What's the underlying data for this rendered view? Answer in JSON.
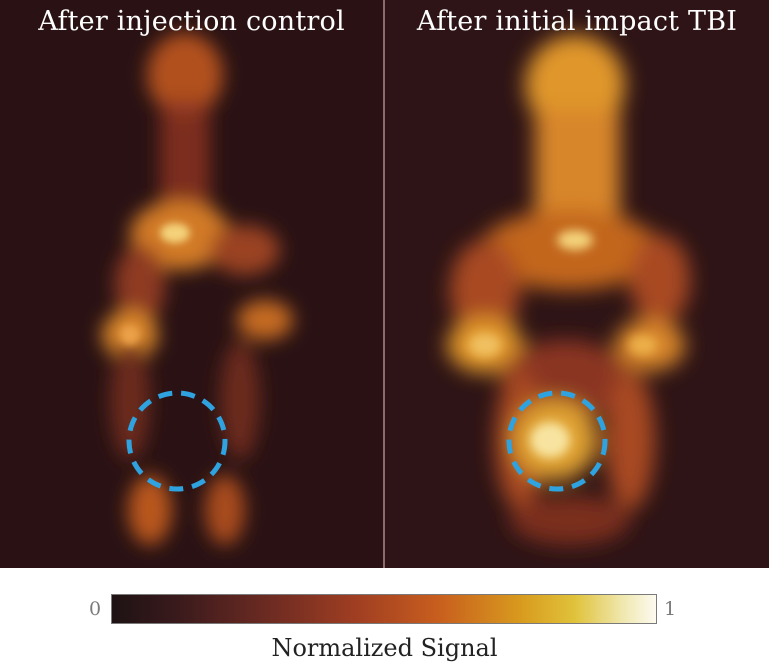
{
  "panels": [
    {
      "title": "After injection control"
    },
    {
      "title": "After initial impact TBI"
    }
  ],
  "colorbar": {
    "min_label": "0",
    "max_label": "1",
    "label": "Normalized Signal"
  },
  "colors": {
    "roi_circle": "#2fa3e0",
    "background": "#2a1214"
  }
}
